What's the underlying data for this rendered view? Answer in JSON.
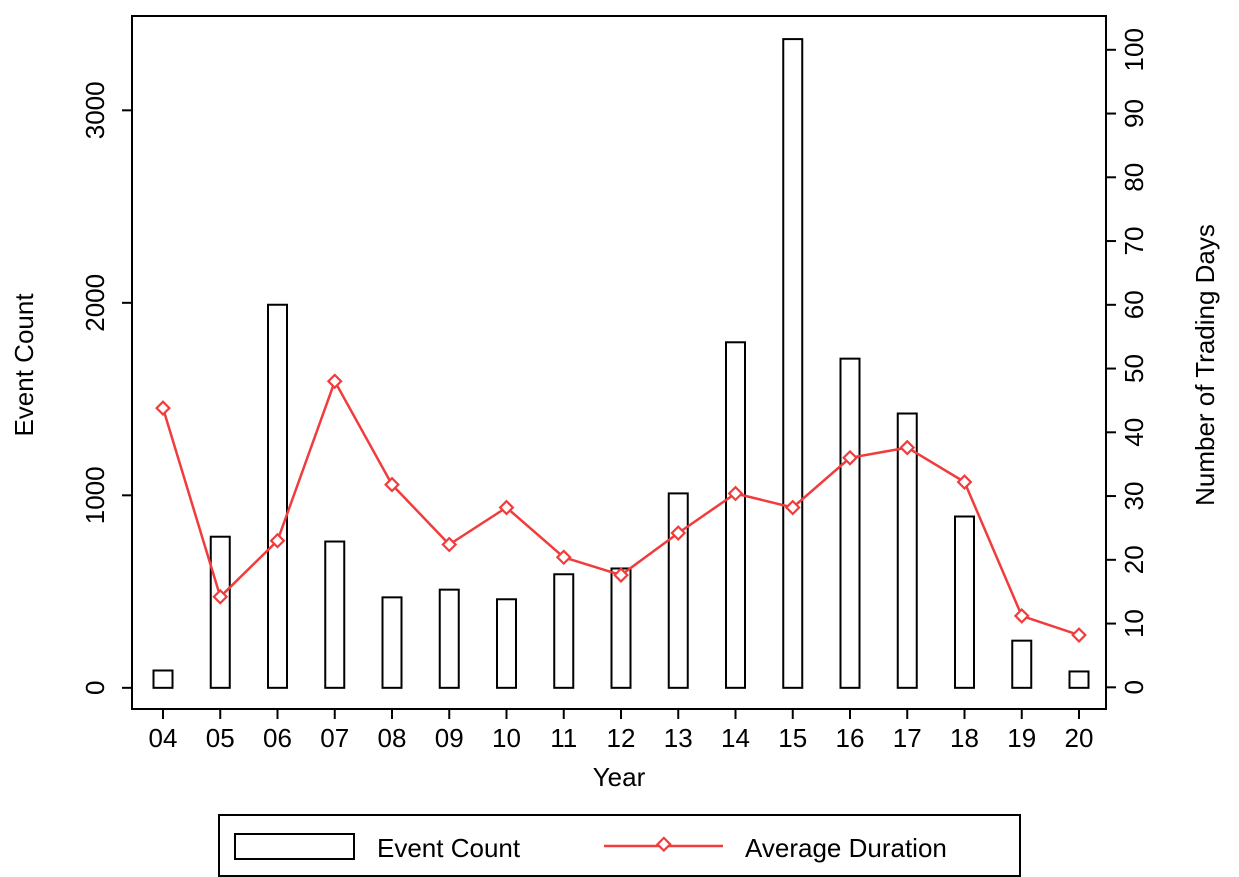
{
  "chart_data": {
    "type": "bar+line",
    "xlabel": "Year",
    "ylabel_left": "Event Count",
    "ylabel_right": "Number of Trading Days",
    "categories": [
      "04",
      "05",
      "06",
      "07",
      "08",
      "09",
      "10",
      "11",
      "12",
      "13",
      "14",
      "15",
      "16",
      "17",
      "18",
      "19",
      "20"
    ],
    "series": [
      {
        "name": "Event Count",
        "type": "bar",
        "axis": "left",
        "values": [
          90,
          785,
          1990,
          760,
          470,
          510,
          460,
          590,
          620,
          1010,
          1795,
          3370,
          1710,
          1425,
          890,
          245,
          85
        ]
      },
      {
        "name": "Average Duration",
        "type": "line",
        "axis": "right",
        "values": [
          43.8,
          14.2,
          23.0,
          48.0,
          31.8,
          22.4,
          28.2,
          20.4,
          17.6,
          24.2,
          30.4,
          28.2,
          36.0,
          37.6,
          32.2,
          11.2,
          8.2
        ]
      }
    ],
    "ylim_left": [
      -110,
      3490
    ],
    "ylim_right": [
      -3.4,
      105.3
    ],
    "yticks_left": [
      0,
      1000,
      2000,
      3000
    ],
    "yticks_right": [
      0,
      10,
      20,
      30,
      40,
      50,
      60,
      70,
      80,
      90,
      100
    ],
    "grid": false,
    "legend_position": "bottom",
    "colors": {
      "bars_fill": "#ffffff",
      "bars_stroke": "#000000",
      "line": "#f03c3c"
    }
  }
}
